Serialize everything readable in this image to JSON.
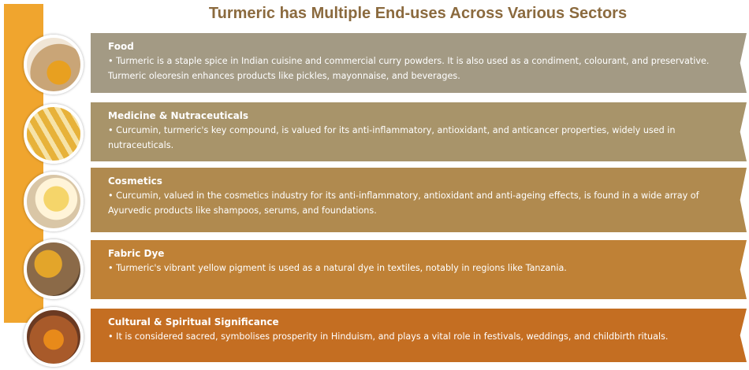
{
  "title": "Turmeric has Multiple End-uses Across Various Sectors",
  "items": [
    {
      "heading": "Food",
      "text": "Turmeric is a staple spice in Indian cuisine and commercial curry powders. It is also used as a condiment, colourant, and preservative. Turmeric oleoresin enhances products like pickles, mayonnaise, and beverages."
    },
    {
      "heading": "Medicine & Nutraceuticals",
      "text": "Curcumin, turmeric's key compound, is valued for its anti-inflammatory, antioxidant, and anticancer properties, widely used in nutraceuticals."
    },
    {
      "heading": "Cosmetics",
      "text": "Curcumin, valued in the cosmetics industry for its anti-inflammatory, antioxidant and anti-ageing effects, is found in a wide array of Ayurvedic products like shampoos, serums, and foundations."
    },
    {
      "heading": "Fabric Dye",
      "text": "Turmeric's vibrant yellow pigment is used as a natural dye in textiles, notably in regions like Tanzania."
    },
    {
      "heading": "Cultural & Spiritual Significance",
      "text": "It is considered sacred, symbolises prosperity in Hinduism, and plays a vital role in festivals, weddings, and childbirth rituals."
    }
  ]
}
